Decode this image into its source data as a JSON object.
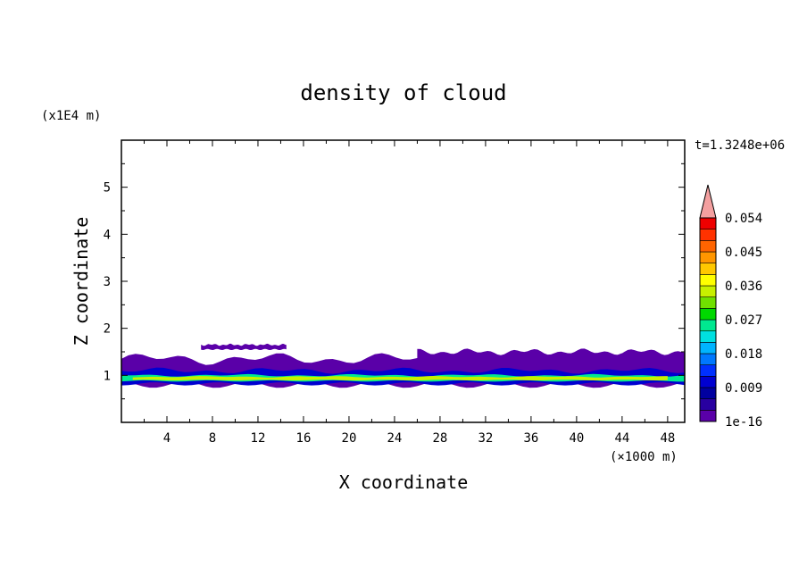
{
  "chart_data": {
    "type": "heatmap",
    "title": "density of cloud",
    "xlabel": "X coordinate",
    "ylabel": "Z coordinate",
    "x_unit": "(×1000 m)",
    "y_unit": "(x1E4 m)",
    "time_label": "t=1.3248e+06",
    "xlim": [
      0,
      49.5
    ],
    "ylim": [
      0,
      6
    ],
    "x_ticks": [
      "4",
      "8",
      "12",
      "16",
      "20",
      "24",
      "28",
      "32",
      "36",
      "40",
      "44",
      "48"
    ],
    "y_ticks": [
      "1",
      "2",
      "3",
      "4",
      "5"
    ],
    "colorbar": {
      "tick_labels": [
        "1e-16",
        "0.009",
        "0.018",
        "0.027",
        "0.036",
        "0.045",
        "0.054"
      ],
      "colors": [
        "#5a00a8",
        "#2800a0",
        "#0000a0",
        "#0000d0",
        "#0030ff",
        "#0078ff",
        "#00b4ff",
        "#00e0e0",
        "#00e890",
        "#00d800",
        "#70e000",
        "#c8f000",
        "#ffff00",
        "#ffc800",
        "#ff9600",
        "#ff6400",
        "#ff3200",
        "#ee0000"
      ],
      "extend_color": "#f4a0a0"
    },
    "regions": [
      {
        "desc": "main cloud layer envelope",
        "x0": 0,
        "x1": 49.5,
        "z0": 0.8,
        "z1": 1.35,
        "level": 0
      },
      {
        "desc": "upper layer bulge",
        "x0": 26,
        "x1": 49.5,
        "z0": 1.2,
        "z1": 1.5,
        "level": 0
      },
      {
        "desc": "detached upper patch",
        "x0": 7,
        "x1": 14.5,
        "z0": 1.55,
        "z1": 1.65,
        "level": 0
      },
      {
        "desc": "dense inner band",
        "x0": 0,
        "x1": 49.5,
        "z0": 0.82,
        "z1": 1.1,
        "level": 3
      },
      {
        "desc": "core band",
        "x0": 0,
        "x1": 49.5,
        "z0": 0.88,
        "z1": 1.0,
        "level": 8
      },
      {
        "desc": "peak filaments",
        "x0": 1,
        "x1": 48,
        "z0": 0.9,
        "z1": 0.97,
        "level": 11
      }
    ]
  }
}
